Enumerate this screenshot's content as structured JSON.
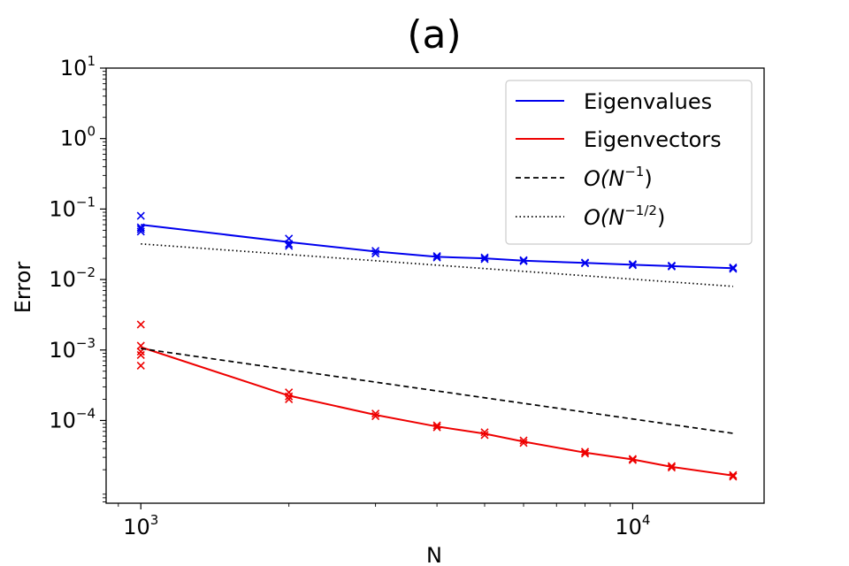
{
  "chart_data": {
    "type": "line",
    "title": "(a)",
    "xlabel": "N",
    "ylabel": "Error",
    "xscale": "log",
    "yscale": "log",
    "xlim": [
      850,
      18500
    ],
    "ylim": [
      6.7e-06,
      10
    ],
    "xticks": [
      {
        "value": 1000,
        "base": "10",
        "exp": "3"
      },
      {
        "value": 10000,
        "base": "10",
        "exp": "4"
      }
    ],
    "yticks": [
      {
        "value": 10,
        "base": "10",
        "exp": "1"
      },
      {
        "value": 1,
        "base": "10",
        "exp": "0"
      },
      {
        "value": 0.1,
        "base": "10",
        "exp": "−1"
      },
      {
        "value": 0.01,
        "base": "10",
        "exp": "−2"
      },
      {
        "value": 0.001,
        "base": "10",
        "exp": "−3"
      },
      {
        "value": 0.0001,
        "base": "10",
        "exp": "−4"
      }
    ],
    "legend_position": "top-right",
    "series": [
      {
        "name": "Eigenvalues",
        "color": "#0000ee",
        "style": "solid",
        "x": [
          1000,
          2000,
          3000,
          4000,
          5000,
          6000,
          8000,
          10000,
          12000,
          16000
        ],
        "values": [
          0.06,
          0.034,
          0.025,
          0.021,
          0.02,
          0.0185,
          0.0172,
          0.0162,
          0.0155,
          0.0145
        ],
        "samples": [
          [
            1000,
            0.08
          ],
          [
            1000,
            0.055
          ],
          [
            1000,
            0.052
          ],
          [
            1000,
            0.048
          ],
          [
            2000,
            0.038
          ],
          [
            2000,
            0.032
          ],
          [
            2000,
            0.03
          ],
          [
            3000,
            0.0255
          ],
          [
            3000,
            0.0235
          ],
          [
            4000,
            0.0215
          ],
          [
            4000,
            0.0205
          ],
          [
            5000,
            0.0205
          ],
          [
            5000,
            0.0195
          ],
          [
            6000,
            0.0188
          ],
          [
            6000,
            0.0182
          ],
          [
            8000,
            0.0174
          ],
          [
            8000,
            0.017
          ],
          [
            10000,
            0.0165
          ],
          [
            10000,
            0.016
          ],
          [
            12000,
            0.0157
          ],
          [
            12000,
            0.0153
          ],
          [
            16000,
            0.0148
          ],
          [
            16000,
            0.0142
          ]
        ]
      },
      {
        "name": "Eigenvectors",
        "color": "#ee0000",
        "style": "solid",
        "x": [
          1000,
          2000,
          3000,
          4000,
          5000,
          6000,
          8000,
          10000,
          12000,
          16000
        ],
        "values": [
          0.0011,
          0.000225,
          0.00012,
          8.2e-05,
          6.5e-05,
          5e-05,
          3.5e-05,
          2.8e-05,
          2.2e-05,
          1.65e-05
        ],
        "samples": [
          [
            1000,
            0.0023
          ],
          [
            1000,
            0.00115
          ],
          [
            1000,
            0.00095
          ],
          [
            1000,
            0.00085
          ],
          [
            1000,
            0.0006
          ],
          [
            2000,
            0.00025
          ],
          [
            2000,
            0.00022
          ],
          [
            2000,
            0.0002
          ],
          [
            3000,
            0.000125
          ],
          [
            3000,
            0.000115
          ],
          [
            4000,
            8.5e-05
          ],
          [
            4000,
            8e-05
          ],
          [
            5000,
            6.8e-05
          ],
          [
            5000,
            6.2e-05
          ],
          [
            6000,
            5.2e-05
          ],
          [
            6000,
            4.8e-05
          ],
          [
            8000,
            3.6e-05
          ],
          [
            8000,
            3.4e-05
          ],
          [
            10000,
            2.85e-05
          ],
          [
            10000,
            2.75e-05
          ],
          [
            12000,
            2.25e-05
          ],
          [
            12000,
            2.15e-05
          ],
          [
            16000,
            1.68e-05
          ],
          [
            16000,
            1.6e-05
          ]
        ]
      },
      {
        "name": "O(N^{-1})",
        "legend_text": "O(N",
        "legend_exp": "−1",
        "legend_close": ")",
        "color": "#000000",
        "style": "dashed",
        "x": [
          1000,
          16000
        ],
        "values": [
          0.00105,
          6.56e-05
        ]
      },
      {
        "name": "O(N^{-1/2})",
        "legend_text": "O(N",
        "legend_exp": "−1/2",
        "legend_close": ")",
        "color": "#000000",
        "style": "dotted",
        "x": [
          1000,
          16000
        ],
        "values": [
          0.032,
          0.008
        ]
      }
    ]
  }
}
